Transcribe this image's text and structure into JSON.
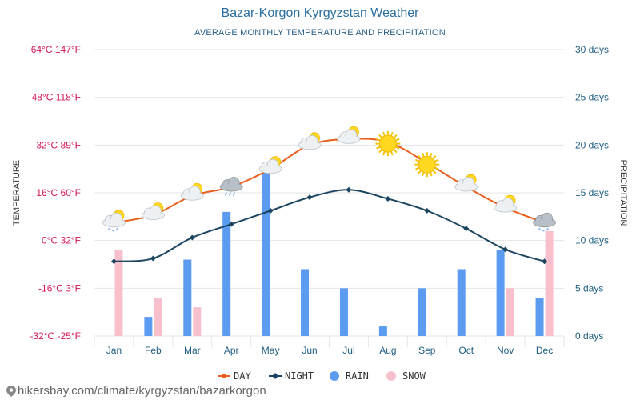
{
  "page": {
    "title": "Bazar-Korgon Kyrgyzstan Weather",
    "subtitle": "AVERAGE MONTHLY TEMPERATURE AND PRECIPITATION",
    "footer": "hikersbay.com/climate/kyrgyzstan/bazarkorgon"
  },
  "chart_data": {
    "type": "line",
    "title": "Bazar-Korgon Kyrgyzstan Weather",
    "subtitle": "AVERAGE MONTHLY TEMPERATURE AND PRECIPITATION",
    "categories": [
      "Jan",
      "Feb",
      "Mar",
      "Apr",
      "May",
      "Jun",
      "Jul",
      "Aug",
      "Sep",
      "Oct",
      "Nov",
      "Dec"
    ],
    "y_left": {
      "label": "TEMPERATURE",
      "unit": "°C",
      "range": [
        -32,
        64
      ],
      "ticks": [
        "-32°C -25°F",
        "-16°C 3°F",
        "0°C 32°F",
        "16°C 60°F",
        "32°C 89°F",
        "48°C 118°F",
        "64°C 147°F"
      ]
    },
    "y_right": {
      "label": "PRECIPITATION",
      "unit": "days",
      "range": [
        0,
        30
      ],
      "ticks": [
        "0 days",
        "5 days",
        "10 days",
        "15 days",
        "20 days",
        "25 days",
        "30 days"
      ]
    },
    "series": [
      {
        "name": "DAY",
        "kind": "line",
        "color": "#e8601c",
        "values": [
          6,
          8.5,
          15,
          18,
          24,
          32,
          34,
          33,
          26,
          18,
          11,
          6
        ]
      },
      {
        "name": "NIGHT",
        "kind": "line",
        "color": "#1b4560",
        "values": [
          -7,
          -6,
          1,
          5.5,
          10,
          14.5,
          17,
          14,
          10,
          4,
          -3,
          -7
        ]
      },
      {
        "name": "RAIN",
        "kind": "bar",
        "color": "#5b9cf0",
        "values": [
          0,
          2,
          8,
          13,
          17.5,
          7,
          5,
          1,
          5,
          7,
          9,
          4
        ]
      },
      {
        "name": "SNOW",
        "kind": "bar",
        "color": "#f7c0cc",
        "values": [
          9,
          4,
          3,
          0,
          0,
          0,
          0,
          0,
          0,
          0,
          5,
          11
        ]
      }
    ],
    "weather_icons": [
      "light-snow-icon",
      "partly-cloudy-icon",
      "partly-cloudy-icon",
      "rain-cloud-icon",
      "partly-cloudy-icon",
      "partly-cloudy-icon",
      "partly-cloudy-icon",
      "sun-icon",
      "sun-icon",
      "partly-cloudy-icon",
      "partly-cloudy-icon",
      "snow-cloud-icon"
    ],
    "grid": true,
    "legend": "bottom"
  },
  "colors": {
    "left_axis": "#d4165c",
    "right_axis": "#1f5e82",
    "month_labels": "#1f5e82",
    "grid": "#e6e6e6"
  }
}
